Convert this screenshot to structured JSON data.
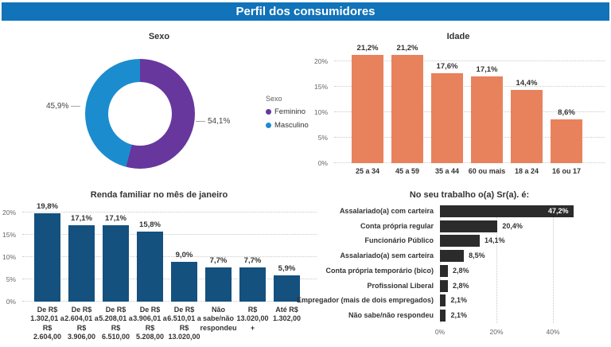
{
  "header": {
    "title": "Perfil dos consumidores",
    "background": "#1173B9",
    "text_color": "#FFFFFF"
  },
  "chart_data": [
    {
      "id": "sexo",
      "type": "pie",
      "title": "Sexo",
      "legend_title": "Sexo",
      "legend_position": "right",
      "series": [
        {
          "name": "Feminino",
          "value": 54.1,
          "label": "54,1%",
          "color": "#67379D"
        },
        {
          "name": "Masculino",
          "value": 45.9,
          "label": "45,9%",
          "color": "#1B8DCE"
        }
      ]
    },
    {
      "id": "idade",
      "type": "bar",
      "title": "Idade",
      "categories": [
        "25 a 34",
        "45 a 59",
        "35 a 44",
        "60 ou mais",
        "18 a 24",
        "16 ou 17"
      ],
      "values": [
        21.2,
        21.2,
        17.6,
        17.1,
        14.4,
        8.6
      ],
      "labels": [
        "21,2%",
        "21,2%",
        "17,6%",
        "17,1%",
        "14,4%",
        "8,6%"
      ],
      "yticks": [
        {
          "label": "0%",
          "value": 0
        },
        {
          "label": "5%",
          "value": 5
        },
        {
          "label": "10%",
          "value": 10
        },
        {
          "label": "15%",
          "value": 15
        },
        {
          "label": "20%",
          "value": 20
        }
      ],
      "ylim": [
        0,
        20
      ],
      "bar_color": "#E8825C",
      "grid": "dotted"
    },
    {
      "id": "renda",
      "type": "bar",
      "title": "Renda familiar no mês de janeiro",
      "categories": [
        "De R$\n1.302,01 a\nR$\n2.604,00",
        "De R$\n2.604,01 a\nR$\n3.906,00",
        "De R$\n5.208,01 a\nR$\n6.510,00",
        "De R$\n3.906,01 a\nR$\n5.208,00",
        "De R$\n6.510,01 a\nR$\n13.020,00",
        "Não\nsabe/não\nrespondeu",
        "R$\n13.020,00\n+",
        "Até R$\n1.302,00"
      ],
      "values": [
        19.8,
        17.1,
        17.1,
        15.8,
        9.0,
        7.7,
        7.7,
        5.9
      ],
      "labels": [
        "19,8%",
        "17,1%",
        "17,1%",
        "15,8%",
        "9,0%",
        "7,7%",
        "7,7%",
        "5,9%"
      ],
      "yticks": [
        {
          "label": "0%",
          "value": 0
        },
        {
          "label": "5%",
          "value": 5
        },
        {
          "label": "10%",
          "value": 10
        },
        {
          "label": "15%",
          "value": 15
        },
        {
          "label": "20%",
          "value": 20
        }
      ],
      "ylim": [
        0,
        20
      ],
      "bar_color": "#14517F",
      "grid": "dotted"
    },
    {
      "id": "trabalho",
      "type": "horizontal-bar",
      "title": "No seu trabalho o(a) Sr(a). é:",
      "categories": [
        "Assalariado(a) com carteira",
        "Conta própria regular",
        "Funcionário Público",
        "Assalariado(a) sem carteira",
        "Conta própria temporário (bico)",
        "Profissional Liberal",
        "Empregador (mais de dois empregados)",
        "Não sabe/não respondeu"
      ],
      "values": [
        47.2,
        20.4,
        14.1,
        8.5,
        2.8,
        2.8,
        2.1,
        2.1
      ],
      "labels": [
        "47,2%",
        "20,4%",
        "14,1%",
        "8,5%",
        "2,8%",
        "2,8%",
        "2,1%",
        "2,1%"
      ],
      "xticks": [
        {
          "label": "0%",
          "value": 0
        },
        {
          "label": "20%",
          "value": 20
        },
        {
          "label": "40%",
          "value": 40
        }
      ],
      "xlim": [
        0,
        50
      ],
      "bar_color": "#2B2B2B",
      "grid": "dotted"
    }
  ]
}
